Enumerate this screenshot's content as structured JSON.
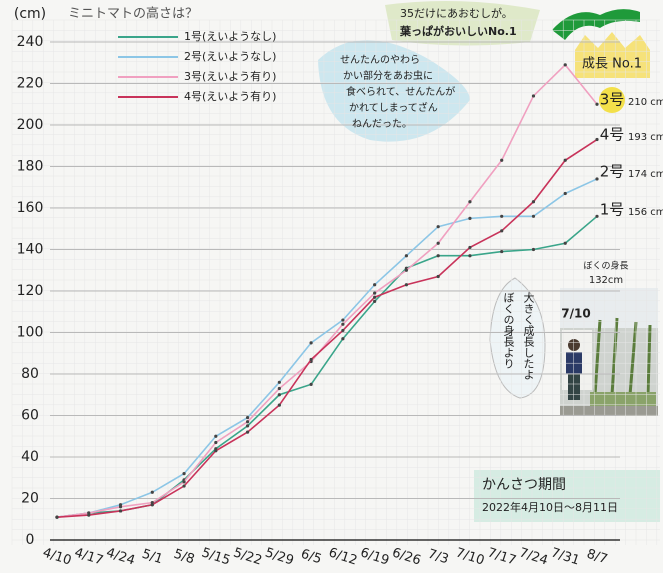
{
  "chart_data": {
    "type": "line",
    "title": "ミニトマトの高さは？",
    "y_unit": "(cm)",
    "categories": [
      "4/10",
      "4/17",
      "4/24",
      "5/1",
      "5/8",
      "5/15",
      "5/22",
      "5/29",
      "6/5",
      "6/12",
      "6/19",
      "6/26",
      "7/3",
      "7/10",
      "7/17",
      "7/24",
      "7/31",
      "8/7"
    ],
    "series": [
      {
        "name": "1号(えいようなし)",
        "short": "1号",
        "color": "#3aa58a",
        "values": [
          11,
          13,
          14,
          17,
          29,
          44,
          55,
          70,
          75,
          97,
          115,
          131,
          137,
          137,
          139,
          140,
          143,
          156
        ],
        "value_labels": [
          null,
          null,
          null,
          null,
          null,
          null,
          null,
          null,
          null,
          null,
          null,
          null,
          null,
          null,
          null,
          null,
          null,
          "156 cm"
        ]
      },
      {
        "name": "2号(えいようなし)",
        "short": "2号",
        "color": "#8cc6e6",
        "values": [
          11,
          13,
          17,
          23,
          32,
          50,
          59,
          76,
          95,
          106,
          123,
          137,
          151,
          155,
          156,
          156,
          167,
          174
        ],
        "value_labels": [
          null,
          null,
          null,
          null,
          null,
          null,
          null,
          null,
          null,
          null,
          null,
          null,
          null,
          null,
          null,
          null,
          null,
          "174 cm"
        ]
      },
      {
        "name": "3号(えいよう有り)",
        "short": "3号",
        "color": "#f0a0c0",
        "values": [
          11,
          13,
          16,
          18,
          28,
          47,
          57,
          73,
          86,
          104,
          119,
          130,
          143,
          163,
          183,
          214,
          229,
          210
        ],
        "value_labels": [
          null,
          null,
          null,
          null,
          null,
          null,
          null,
          null,
          null,
          null,
          null,
          null,
          null,
          null,
          null,
          null,
          null,
          "210 cm"
        ]
      },
      {
        "name": "4号(えいよう有り)",
        "short": "4号",
        "color": "#c8335a",
        "values": [
          11,
          12,
          14,
          17,
          26,
          43,
          52,
          65,
          87,
          101,
          117,
          123,
          127,
          141,
          149,
          163,
          183,
          193
        ],
        "value_labels": [
          null,
          null,
          null,
          null,
          null,
          null,
          null,
          null,
          null,
          null,
          null,
          null,
          null,
          null,
          null,
          null,
          null,
          "193 cm"
        ]
      }
    ],
    "ylim": [
      0,
      240
    ],
    "yticks": [
      0,
      20,
      40,
      60,
      80,
      100,
      120,
      140,
      160,
      180,
      200,
      220,
      240
    ],
    "grid": true,
    "annotations": {
      "caterpillar_note": [
        "35だけにあおむしが。",
        "葉っぱがおいしいNo.1"
      ],
      "leaf_note": [
        "せんたんのやわら",
        "かい部分をあお虫に",
        "食べられて、せんたんが",
        "かれてしまってざん",
        "ねんだった。"
      ],
      "crown": "成長 No.1",
      "height_note": "ぼくの身長",
      "height_value": "132cm",
      "photo_date": "7/10",
      "growth_note": [
        "大きく成長したよ",
        "ぼくの身長より"
      ],
      "period_title": "かんさつ期間",
      "period": "2022年4月10日〜8月11日"
    }
  }
}
